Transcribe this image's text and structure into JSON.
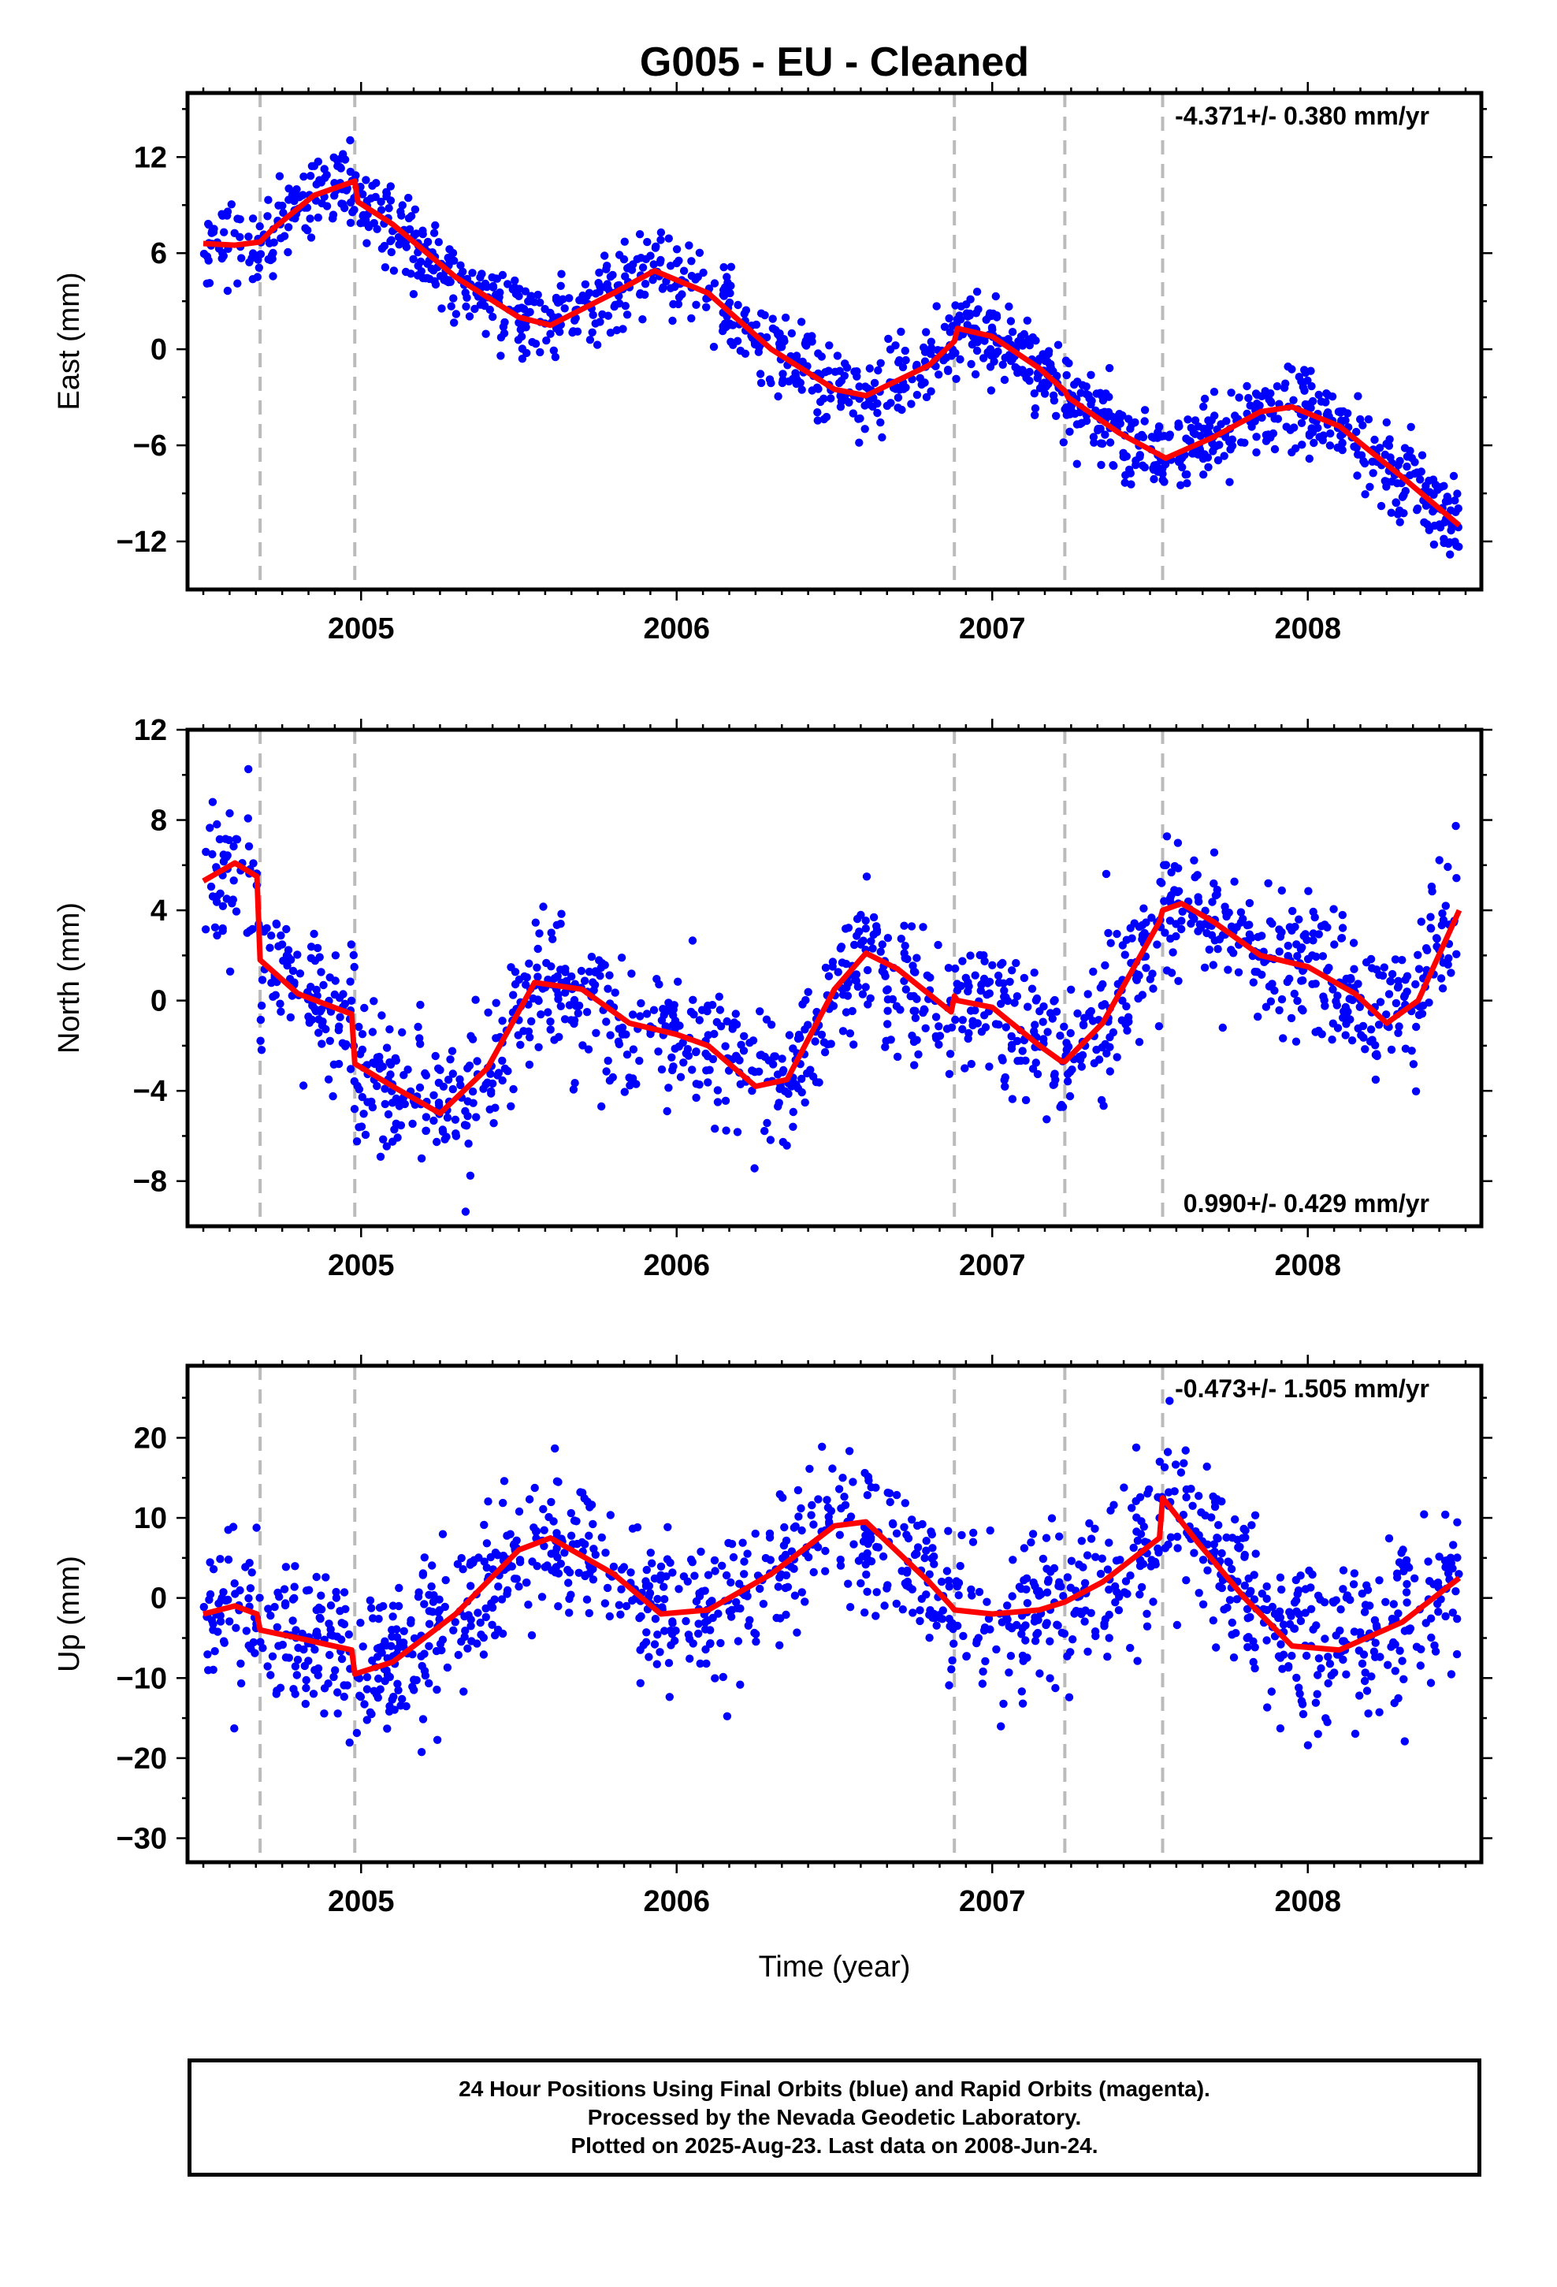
{
  "title": "G005  - EU - Cleaned",
  "xlabel": "Time (year)",
  "footer": {
    "line1": "24 Hour Positions Using Final Orbits (blue) and Rapid Orbits (magenta).",
    "line2": "Processed by the Nevada Geodetic Laboratory.",
    "line3": "Plotted on 2025-Aug-23. Last data on 2008-Jun-24."
  },
  "colors": {
    "data": "#0000ff",
    "model": "#ff0000",
    "step": "#bbbbbb",
    "frame": "#000000"
  },
  "chart_data": [
    {
      "type": "scatter",
      "component": "East",
      "ylabel": "East (mm)",
      "rate": "-4.371+/- 0.380 mm/yr",
      "rate_position": "top-right",
      "xlim": [
        2004.45,
        2008.55
      ],
      "ylim": [
        -15,
        16
      ],
      "xticks": [
        2005,
        2006,
        2007,
        2008
      ],
      "yticks": [
        -12,
        -6,
        0,
        6,
        12
      ],
      "steps": [
        2004.68,
        2004.98,
        2006.88,
        2007.23,
        2007.54
      ],
      "model_x": [
        2004.5,
        2004.6,
        2004.68,
        2004.72,
        2004.85,
        2004.98,
        2004.99,
        2005.1,
        2005.3,
        2005.5,
        2005.6,
        2005.8,
        2005.93,
        2006.1,
        2006.3,
        2006.5,
        2006.6,
        2006.8,
        2006.88,
        2006.89,
        2007.0,
        2007.15,
        2007.23,
        2007.24,
        2007.4,
        2007.54,
        2007.55,
        2007.7,
        2007.85,
        2007.95,
        2008.1,
        2008.3,
        2008.48
      ],
      "model_y": [
        6.6,
        6.5,
        6.7,
        7.5,
        9.6,
        10.5,
        9.2,
        7.8,
        4.5,
        2.0,
        1.5,
        3.5,
        4.9,
        3.5,
        0.0,
        -2.5,
        -2.9,
        -1.0,
        0.5,
        1.3,
        0.8,
        -1.2,
        -2.6,
        -3.0,
        -5.2,
        -6.7,
        -6.8,
        -5.5,
        -3.9,
        -3.6,
        -4.8,
        -8.0,
        -11.0
      ],
      "scatter_sd": 1.3,
      "n_points": 1300
    },
    {
      "type": "scatter",
      "component": "North",
      "ylabel": "North (mm)",
      "rate": "0.990+/- 0.429 mm/yr",
      "rate_position": "bottom-right",
      "xlim": [
        2004.45,
        2008.55
      ],
      "ylim": [
        -10,
        12
      ],
      "xticks": [
        2005,
        2006,
        2007,
        2008
      ],
      "yticks": [
        -8,
        -4,
        0,
        4,
        8,
        12
      ],
      "steps": [
        2004.68,
        2004.98,
        2006.88,
        2007.23,
        2007.54
      ],
      "model_x": [
        2004.5,
        2004.6,
        2004.67,
        2004.68,
        2004.8,
        2004.97,
        2004.98,
        2005.1,
        2005.25,
        2005.4,
        2005.55,
        2005.7,
        2005.85,
        2006.0,
        2006.1,
        2006.25,
        2006.35,
        2006.5,
        2006.6,
        2006.7,
        2006.87,
        2006.88,
        2006.89,
        2007.0,
        2007.15,
        2007.22,
        2007.23,
        2007.35,
        2007.45,
        2007.53,
        2007.54,
        2007.6,
        2007.7,
        2007.85,
        2008.0,
        2008.15,
        2008.25,
        2008.35,
        2008.48
      ],
      "model_y": [
        5.3,
        6.1,
        5.5,
        1.8,
        0.3,
        -0.6,
        -2.8,
        -3.8,
        -5.0,
        -3.0,
        0.8,
        0.5,
        -1.0,
        -1.5,
        -2.0,
        -3.8,
        -3.5,
        0.5,
        2.1,
        1.4,
        -0.5,
        0.2,
        0.0,
        -0.3,
        -2.0,
        -2.7,
        -2.7,
        -1.0,
        1.5,
        3.5,
        4.0,
        4.3,
        3.5,
        2.0,
        1.5,
        0.3,
        -1.0,
        0.0,
        4.0
      ],
      "scatter_sd": 1.6,
      "n_points": 1300
    },
    {
      "type": "scatter",
      "component": "Up",
      "ylabel": "Up (mm)",
      "rate": "-0.473+/- 1.505 mm/yr",
      "rate_position": "top-right",
      "xlim": [
        2004.45,
        2008.55
      ],
      "ylim": [
        -33,
        29
      ],
      "xticks": [
        2005,
        2006,
        2007,
        2008
      ],
      "yticks": [
        -30,
        -20,
        -10,
        0,
        10,
        20
      ],
      "steps": [
        2004.68,
        2004.98,
        2006.88,
        2007.23,
        2007.54
      ],
      "model_x": [
        2004.5,
        2004.6,
        2004.67,
        2004.68,
        2004.8,
        2004.97,
        2004.98,
        2005.1,
        2005.3,
        2005.5,
        2005.6,
        2005.8,
        2005.95,
        2006.1,
        2006.3,
        2006.5,
        2006.6,
        2006.8,
        2006.87,
        2006.88,
        2007.0,
        2007.15,
        2007.23,
        2007.35,
        2007.53,
        2007.54,
        2007.65,
        2007.8,
        2007.95,
        2008.1,
        2008.3,
        2008.48
      ],
      "model_y": [
        -2.0,
        -1.0,
        -2.0,
        -4.0,
        -5.0,
        -6.5,
        -9.5,
        -8.0,
        -2.0,
        6.0,
        7.5,
        3.0,
        -2.0,
        -1.5,
        3.0,
        9.0,
        9.5,
        2.0,
        -1.0,
        -1.5,
        -2.0,
        -1.5,
        -0.5,
        2.0,
        7.5,
        12.5,
        7.0,
        0.0,
        -6.0,
        -6.5,
        -3.0,
        2.5
      ],
      "scatter_sd": 5.0,
      "n_points": 1300
    }
  ]
}
